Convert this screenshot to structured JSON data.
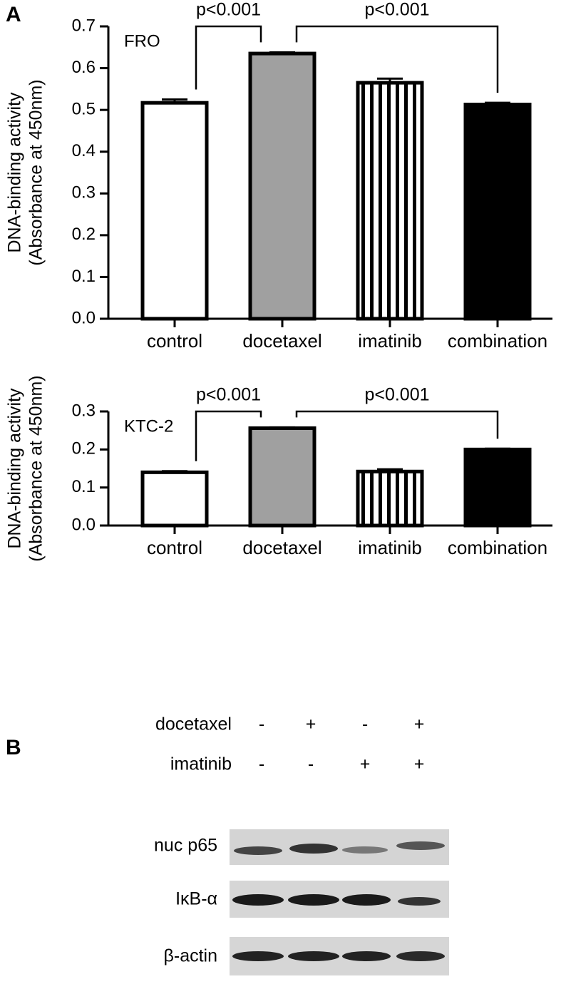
{
  "panel_label": "A",
  "chart_data": [
    {
      "type": "bar",
      "label": "FRO",
      "ylabel": [
        "DNA-binding activity",
        "(Absorbance at 450nm)"
      ],
      "categories": [
        "control",
        "docetaxel",
        "imatinib",
        "combination"
      ],
      "values": [
        0.517,
        0.635,
        0.565,
        0.513
      ],
      "errors": [
        0.008,
        0.003,
        0.01,
        0.004
      ],
      "fills": [
        "white",
        "#a0a0a0",
        "stripes",
        "black"
      ],
      "ylim": [
        0,
        0.7
      ],
      "yticks": [
        {
          "value": 0,
          "label": "0.0"
        },
        0.1,
        0.2,
        0.3,
        0.4,
        0.5,
        0.6,
        0.7
      ],
      "annotations": [
        "p<0.001",
        "p<0.001"
      ]
    },
    {
      "type": "bar",
      "label": "KTC-2",
      "ylabel": [
        "DNA-binding activity",
        "(Absorbance at 450nm)"
      ],
      "categories": [
        "control",
        "docetaxel",
        "imatinib",
        "combination"
      ],
      "values": [
        0.14,
        0.256,
        0.142,
        0.2
      ],
      "errors": [
        0.003,
        0.002,
        0.006,
        0.002
      ],
      "fills": [
        "white",
        "#a0a0a0",
        "stripes",
        "black"
      ],
      "ylim": [
        0,
        0.3
      ],
      "yticks": [
        {
          "value": 0,
          "label": "0.0"
        },
        0.1,
        0.2,
        0.3
      ],
      "annotations": [
        "p<0.001",
        "p<0.001"
      ]
    }
  ],
  "blot": {
    "label": "B",
    "treatments": [
      {
        "name": "docetaxel",
        "signs": [
          "-",
          "+",
          "-",
          "+"
        ]
      },
      {
        "name": "imatinib",
        "signs": [
          "-",
          "-",
          "+",
          "+"
        ]
      }
    ],
    "bands": [
      "nuc p65",
      "IκB-α",
      "β-actin"
    ]
  }
}
